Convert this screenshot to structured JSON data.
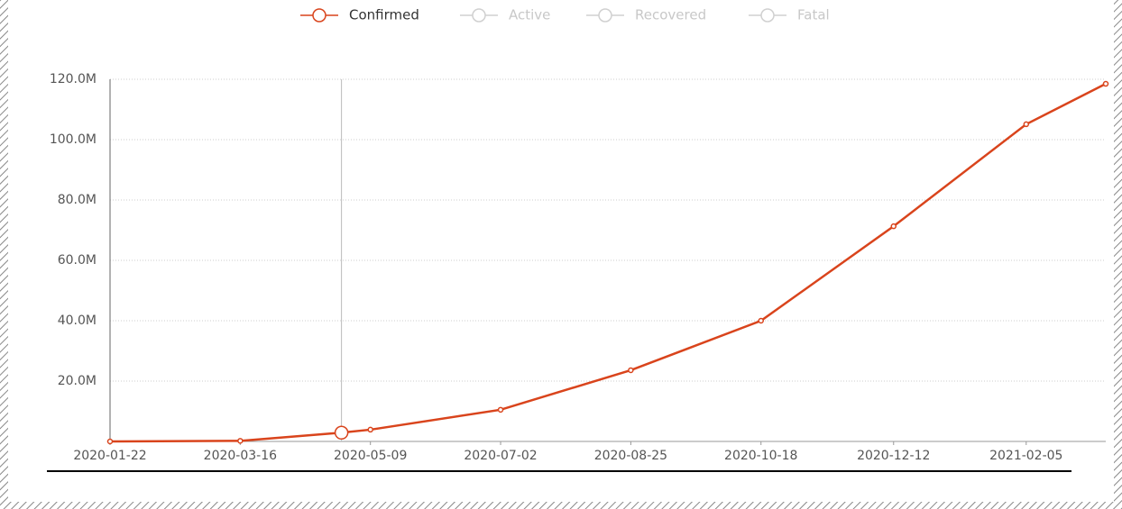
{
  "chart_data": {
    "type": "line",
    "x": [
      "2020-01-22",
      "2020-03-16",
      "2020-04-27",
      "2020-05-09",
      "2020-07-02",
      "2020-08-25",
      "2020-10-18",
      "2020-12-12",
      "2021-02-05",
      "2021-03-10"
    ],
    "series": [
      {
        "name": "Confirmed",
        "color": "#d9441c",
        "values": [
          0,
          200000,
          2900000,
          3900000,
          10500000,
          23600000,
          40000000,
          71300000,
          105100000,
          118500000
        ]
      },
      {
        "name": "Active",
        "color": "#d0d0d0",
        "hidden": true
      },
      {
        "name": "Recovered",
        "color": "#d0d0d0",
        "hidden": true
      },
      {
        "name": "Fatal",
        "color": "#d0d0d0",
        "hidden": true
      }
    ],
    "hover_index": 2,
    "xlim": [
      "2020-01-22",
      "2021-03-10"
    ],
    "xticks": [
      "2020-01-22",
      "2020-03-16",
      "2020-05-09",
      "2020-07-02",
      "2020-08-25",
      "2020-10-18",
      "2020-12-12",
      "2021-02-05"
    ],
    "ylim": [
      0,
      120000000
    ],
    "yticks": [
      {
        "value": 20000000,
        "label": "20.0M"
      },
      {
        "value": 40000000,
        "label": "40.0M"
      },
      {
        "value": 60000000,
        "label": "60.0M"
      },
      {
        "value": 80000000,
        "label": "80.0M"
      },
      {
        "value": 100000000,
        "label": "100.0M"
      },
      {
        "value": 120000000,
        "label": "120.0M"
      }
    ],
    "grid": true
  }
}
